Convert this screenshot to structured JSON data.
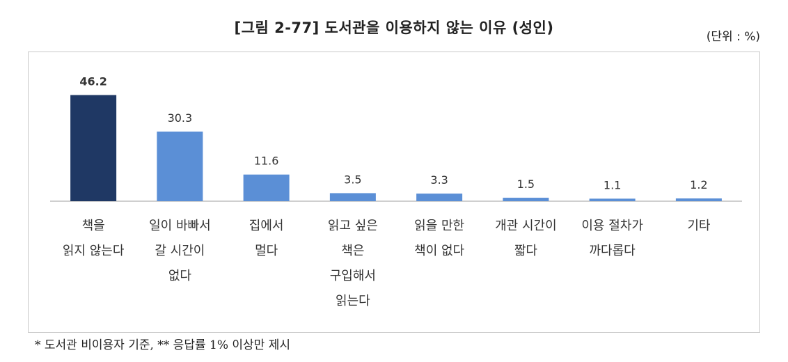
{
  "title": "[그림 2-77] 도서관을 이용하지 않는 이유 (성인)",
  "unit": "(단위 : %)",
  "note": "* 도서관 비이용자 기준, ** 응답률 1% 이상만 제시",
  "colors": {
    "highlight": "#1f3864",
    "bar": "#5b8fd6",
    "axis": "#bfbfbf"
  },
  "chart_data": {
    "type": "bar",
    "categories": [
      "책을\n읽지 않는다",
      "일이 바빠서\n갈 시간이\n없다",
      "집에서\n멀다",
      "읽고 싶은\n책은\n구입해서\n읽는다",
      "읽을 만한\n책이 없다",
      "개관 시간이\n짧다",
      "이용 절차가\n까다롭다",
      "기타"
    ],
    "values": [
      46.2,
      30.3,
      11.6,
      3.5,
      3.3,
      1.5,
      1.1,
      1.2
    ],
    "value_labels": [
      "46.2",
      "30.3",
      "11.6",
      "3.5",
      "3.3",
      "1.5",
      "1.1",
      "1.2"
    ],
    "highlight_index": 0,
    "ylim": [
      0,
      50
    ],
    "grid": false,
    "legend": "none"
  }
}
